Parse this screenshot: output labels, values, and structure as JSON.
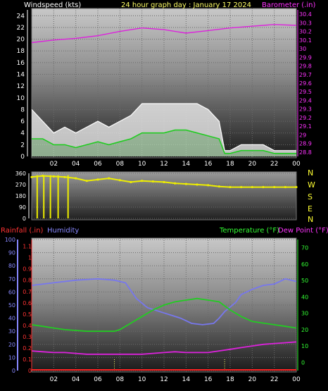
{
  "chart_data": [
    {
      "type": "line",
      "title": "24 hour graph day : January 17 2024",
      "left_label": "Windspeed (kts)",
      "right_label": "Barometer (.in)",
      "x_ticks": [
        "02",
        "04",
        "06",
        "08",
        "10",
        "12",
        "14",
        "16",
        "18",
        "20",
        "22",
        "00"
      ],
      "y_left_ticks": [
        0,
        2,
        4,
        6,
        8,
        10,
        12,
        14,
        16,
        18,
        20,
        22,
        24
      ],
      "y_left_range": [
        0,
        25
      ],
      "y_right_ticks": [
        "28.8",
        "28.9",
        "29",
        "29.1",
        "29.2",
        "29.3",
        "29.4",
        "29.5",
        "29.6",
        "29.7",
        "29.8",
        "29.9",
        "30",
        "30.1",
        "30.2",
        "30.3",
        "30.4"
      ],
      "y_right_range": [
        28.75,
        30.45
      ],
      "series": [
        {
          "role": "gust",
          "color": "#ffffff",
          "x": [
            0,
            1,
            2,
            3,
            4,
            5,
            6,
            7,
            8,
            9,
            10,
            11,
            12,
            13,
            14,
            15,
            16,
            17,
            17.5,
            18,
            19,
            20,
            21,
            22,
            23,
            24
          ],
          "values": [
            8,
            6,
            4,
            5,
            4,
            5,
            6,
            5,
            6,
            7,
            9,
            9,
            9,
            9,
            9,
            9,
            8,
            6,
            1,
            1,
            2,
            2,
            2,
            1,
            1,
            1
          ]
        },
        {
          "role": "average",
          "color": "#22cc22",
          "x": [
            0,
            1,
            2,
            3,
            4,
            5,
            6,
            7,
            8,
            9,
            10,
            11,
            12,
            13,
            14,
            15,
            16,
            17,
            17.5,
            18,
            19,
            20,
            21,
            22,
            23,
            24
          ],
          "values": [
            3,
            3,
            2,
            2,
            1.5,
            2,
            2.5,
            2,
            2.5,
            3,
            4,
            4,
            4,
            4.5,
            4.5,
            4,
            3.5,
            3,
            0.5,
            0.5,
            1,
            1,
            1,
            0.5,
            0.5,
            0.5
          ]
        },
        {
          "role": "barometer",
          "color": "#dd22dd",
          "x": [
            0,
            2,
            4,
            6,
            8,
            10,
            12,
            14,
            16,
            18,
            20,
            22,
            24
          ],
          "values": [
            30.07,
            30.1,
            30.12,
            30.15,
            30.2,
            30.24,
            30.22,
            30.18,
            30.21,
            30.24,
            30.26,
            30.28,
            30.27
          ]
        }
      ]
    },
    {
      "type": "scatter",
      "title": "",
      "y_ticks": [
        0,
        90,
        180,
        270,
        360
      ],
      "y_range": [
        0,
        360
      ],
      "compass": [
        "N",
        "W",
        "S",
        "E",
        "N"
      ],
      "series": [
        {
          "role": "direction",
          "color": "#eeee00",
          "x": [
            0,
            1,
            2,
            3,
            4,
            5,
            6,
            7,
            8,
            9,
            10,
            11,
            12,
            13,
            14,
            15,
            16,
            17,
            18,
            19,
            20,
            21,
            22,
            23,
            24
          ],
          "values": [
            330,
            340,
            335,
            330,
            320,
            300,
            310,
            320,
            305,
            290,
            300,
            295,
            290,
            280,
            275,
            270,
            265,
            255,
            250,
            250,
            250,
            250,
            250,
            250,
            250
          ]
        }
      ],
      "calm_bars_x": [
        0.5,
        1.1,
        1.7,
        2.4,
        3.3
      ]
    },
    {
      "type": "line",
      "title": "",
      "left_labels": [
        "Rainfall (.in)",
        "Humidity"
      ],
      "right_labels": [
        "Temperature (°F)",
        "Dew Point (°F)"
      ],
      "x_ticks": [
        "02",
        "04",
        "06",
        "08",
        "10",
        "12",
        "14",
        "16",
        "18",
        "20",
        "22",
        "00"
      ],
      "y_humidity_ticks": [
        0,
        10,
        20,
        30,
        40,
        50,
        60,
        70,
        80,
        90,
        100
      ],
      "y_rain_ticks": [
        "0",
        "0.1",
        "0.2",
        "0.3",
        "0.4",
        "0.5",
        "0.6",
        "0.7",
        "0.8",
        "0.9",
        "1",
        "1.1"
      ],
      "y_temp_ticks": [
        0,
        10,
        20,
        30,
        40,
        50,
        60,
        70
      ],
      "y_temp_range": [
        -5,
        75
      ],
      "y_humidity_range": [
        0,
        100
      ],
      "series": [
        {
          "role": "humidity",
          "color": "#7777ee",
          "x": [
            0,
            2,
            4,
            6,
            7.5,
            8.5,
            9.5,
            10.5,
            12,
            13.5,
            14.5,
            15.5,
            16.5,
            17,
            17.5,
            18.5,
            19,
            20,
            21,
            22,
            23,
            24
          ],
          "values": [
            65,
            67,
            69,
            70,
            69,
            67,
            55,
            48,
            44,
            40,
            36,
            35,
            36,
            40,
            45,
            52,
            58,
            62,
            65,
            66,
            70,
            68
          ]
        },
        {
          "role": "temperature",
          "color": "#22cc22",
          "x": [
            0,
            1,
            2,
            3,
            4,
            5,
            6,
            7,
            7.5,
            8,
            9,
            10,
            11,
            12,
            13,
            14,
            15,
            16,
            17,
            18,
            19,
            20,
            21,
            22,
            23,
            24
          ],
          "values": [
            23,
            22,
            21,
            20,
            19.5,
            19,
            19,
            19,
            19,
            20,
            24,
            28,
            32,
            35,
            37,
            38,
            39,
            38,
            37,
            32,
            28,
            25,
            24,
            23,
            22,
            21
          ]
        },
        {
          "role": "dew_point",
          "color": "#dd22dd",
          "x": [
            0,
            1,
            2,
            3,
            4,
            5,
            6,
            7,
            8,
            9,
            10,
            11,
            12,
            13,
            14,
            15,
            16,
            17,
            18,
            19,
            20,
            21,
            22,
            23,
            24
          ],
          "values": [
            7,
            6.5,
            6,
            6,
            5.5,
            5,
            5,
            5,
            5,
            5,
            5,
            5.5,
            6,
            6.5,
            6,
            6,
            6,
            7,
            8,
            9,
            10,
            11,
            11.5,
            12,
            12.5
          ]
        },
        {
          "role": "rainfall",
          "color": "#ff2222",
          "x": [
            0,
            24
          ],
          "values": [
            0,
            0
          ]
        }
      ],
      "markers_x": [
        7.5,
        17.5
      ]
    }
  ],
  "colors": {
    "windspeed_label": "#ffffff",
    "title": "#ffff66",
    "barometer": "#ff33ff",
    "compass": "#ffff33",
    "rainfall": "#ff3333",
    "humidity": "#8888ff",
    "temperature": "#33ff33",
    "dew_point": "#ff33ff"
  }
}
